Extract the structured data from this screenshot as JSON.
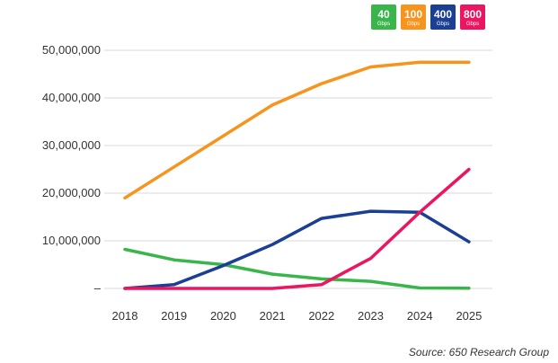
{
  "chart_data": {
    "type": "line",
    "title": "",
    "xlabel": "",
    "ylabel": "",
    "x": [
      2018,
      2019,
      2020,
      2021,
      2022,
      2023,
      2024,
      2025
    ],
    "ylim": [
      0,
      50000000
    ],
    "yticks": [
      0,
      10000000,
      20000000,
      30000000,
      40000000,
      50000000
    ],
    "ytick_labels": [
      "–",
      "10,000,000",
      "20,000,000",
      "30,000,000",
      "40,000,000",
      "50,000,000"
    ],
    "grid": true,
    "legend_position": "top-right",
    "series": [
      {
        "name": "40",
        "unit": "Gbps",
        "color": "#39b54a",
        "values": [
          8200000,
          6000000,
          5000000,
          3000000,
          2000000,
          1500000,
          100000,
          50000
        ]
      },
      {
        "name": "100",
        "unit": "Gbps",
        "color": "#f7941d",
        "values": [
          19000000,
          25500000,
          32000000,
          38500000,
          43000000,
          46500000,
          47500000,
          47500000
        ]
      },
      {
        "name": "400",
        "unit": "Gbps",
        "color": "#1b3f94",
        "values": [
          0,
          800000,
          4800000,
          9200000,
          14700000,
          16200000,
          16000000,
          9800000
        ]
      },
      {
        "name": "800",
        "unit": "Gbps",
        "color": "#ec1561",
        "values": [
          0,
          0,
          0,
          0,
          800000,
          6300000,
          16000000,
          25000000
        ]
      }
    ]
  },
  "source_note": "Source: 650 Research Group"
}
